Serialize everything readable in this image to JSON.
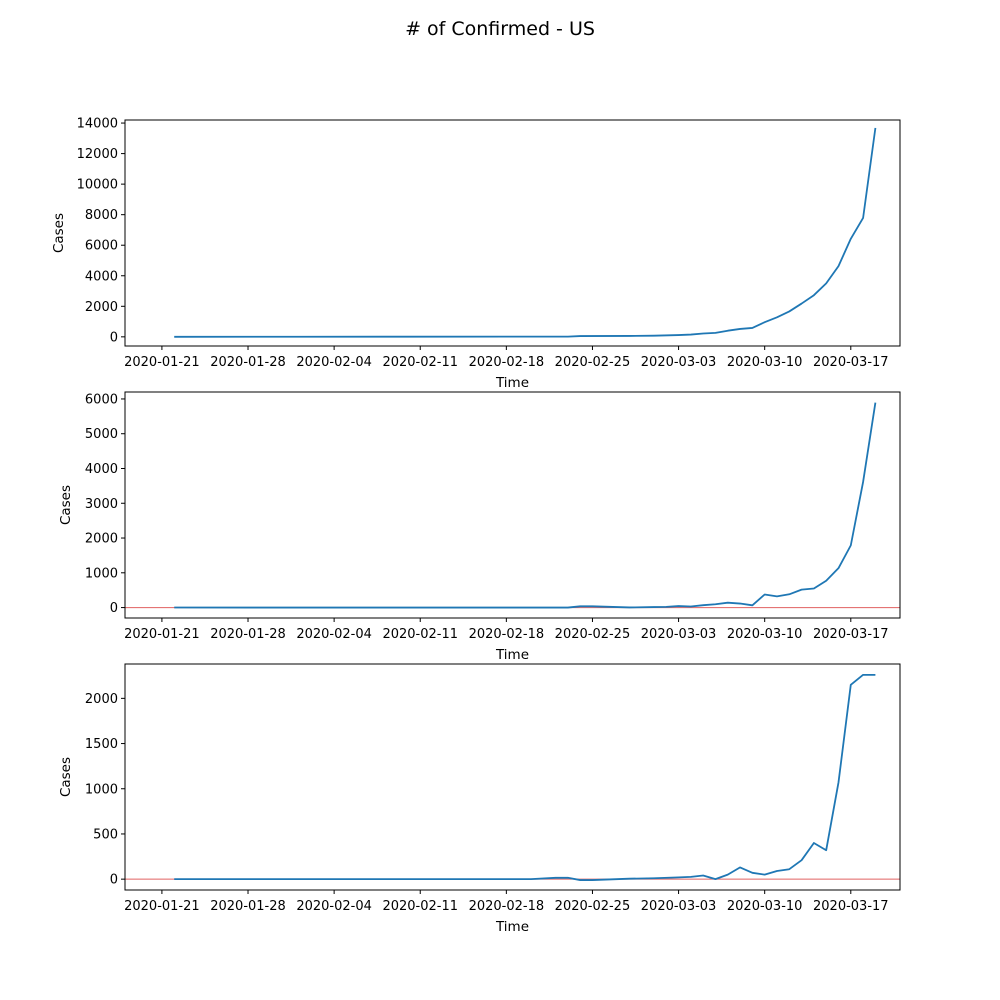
{
  "figure": {
    "title": "# of Confirmed - US"
  },
  "chart_data": [
    {
      "type": "line",
      "xlabel": "Time",
      "ylabel": "Cases",
      "xlim": [
        "2020-01-18",
        "2020-03-21"
      ],
      "ylim": [
        -600,
        14200
      ],
      "yticks": [
        0,
        2000,
        4000,
        6000,
        8000,
        10000,
        12000,
        14000
      ],
      "xticks": [
        "2020-01-21",
        "2020-01-28",
        "2020-02-04",
        "2020-02-11",
        "2020-02-18",
        "2020-02-25",
        "2020-03-03",
        "2020-03-10",
        "2020-03-17"
      ],
      "zero_line": false,
      "series": [
        {
          "color": "#1f77b4",
          "x": [
            "2020-01-22",
            "2020-02-01",
            "2020-02-10",
            "2020-02-20",
            "2020-02-23",
            "2020-02-24",
            "2020-02-28",
            "2020-03-01",
            "2020-03-03",
            "2020-03-04",
            "2020-03-05",
            "2020-03-06",
            "2020-03-07",
            "2020-03-08",
            "2020-03-09",
            "2020-03-10",
            "2020-03-11",
            "2020-03-12",
            "2020-03-13",
            "2020-03-14",
            "2020-03-15",
            "2020-03-16",
            "2020-03-17",
            "2020-03-18",
            "2020-03-19"
          ],
          "y": [
            1,
            8,
            11,
            15,
            15,
            51,
            60,
            75,
            118,
            149,
            217,
            262,
            402,
            518,
            583,
            959,
            1281,
            1663,
            2179,
            2727,
            3499,
            4632,
            6421,
            7786,
            13680
          ]
        }
      ]
    },
    {
      "type": "line",
      "xlabel": "Time",
      "ylabel": "Cases",
      "xlim": [
        "2020-01-18",
        "2020-03-21"
      ],
      "ylim": [
        -300,
        6200
      ],
      "yticks": [
        0,
        1000,
        2000,
        3000,
        4000,
        5000,
        6000
      ],
      "xticks": [
        "2020-01-21",
        "2020-01-28",
        "2020-02-04",
        "2020-02-11",
        "2020-02-18",
        "2020-02-25",
        "2020-03-03",
        "2020-03-10",
        "2020-03-17"
      ],
      "zero_line": true,
      "zero_line_color": "#e06060",
      "series": [
        {
          "color": "#1f77b4",
          "x": [
            "2020-01-22",
            "2020-02-01",
            "2020-02-10",
            "2020-02-20",
            "2020-02-23",
            "2020-02-24",
            "2020-02-25",
            "2020-02-28",
            "2020-03-01",
            "2020-03-02",
            "2020-03-03",
            "2020-03-04",
            "2020-03-05",
            "2020-03-06",
            "2020-03-07",
            "2020-03-08",
            "2020-03-09",
            "2020-03-10",
            "2020-03-11",
            "2020-03-12",
            "2020-03-13",
            "2020-03-14",
            "2020-03-15",
            "2020-03-16",
            "2020-03-17",
            "2020-03-18",
            "2020-03-19"
          ],
          "y": [
            1,
            0,
            0,
            0,
            0,
            36,
            36,
            3,
            15,
            20,
            43,
            31,
            68,
            95,
            140,
            116,
            65,
            376,
            322,
            382,
            516,
            548,
            772,
            1133,
            1789,
            3613,
            5894
          ]
        }
      ]
    },
    {
      "type": "line",
      "xlabel": "Time",
      "ylabel": "Cases",
      "xlim": [
        "2020-01-18",
        "2020-03-21"
      ],
      "ylim": [
        -120,
        2380
      ],
      "yticks": [
        0,
        500,
        1000,
        1500,
        2000
      ],
      "xticks": [
        "2020-01-21",
        "2020-01-28",
        "2020-02-04",
        "2020-02-11",
        "2020-02-18",
        "2020-02-25",
        "2020-03-03",
        "2020-03-10",
        "2020-03-17"
      ],
      "zero_line": true,
      "zero_line_color": "#e06060",
      "series": [
        {
          "color": "#1f77b4",
          "x": [
            "2020-01-22",
            "2020-02-01",
            "2020-02-10",
            "2020-02-20",
            "2020-02-22",
            "2020-02-23",
            "2020-02-24",
            "2020-02-25",
            "2020-02-28",
            "2020-03-01",
            "2020-03-03",
            "2020-03-04",
            "2020-03-05",
            "2020-03-06",
            "2020-03-07",
            "2020-03-08",
            "2020-03-09",
            "2020-03-10",
            "2020-03-11",
            "2020-03-12",
            "2020-03-13",
            "2020-03-14",
            "2020-03-15",
            "2020-03-16",
            "2020-03-17",
            "2020-03-18",
            "2020-03-19"
          ],
          "y": [
            0,
            0,
            0,
            0,
            15,
            15,
            -10,
            -10,
            5,
            10,
            20,
            25,
            40,
            0,
            50,
            130,
            70,
            50,
            90,
            110,
            210,
            400,
            320,
            1070,
            2150,
            2260,
            2260
          ]
        }
      ]
    }
  ]
}
